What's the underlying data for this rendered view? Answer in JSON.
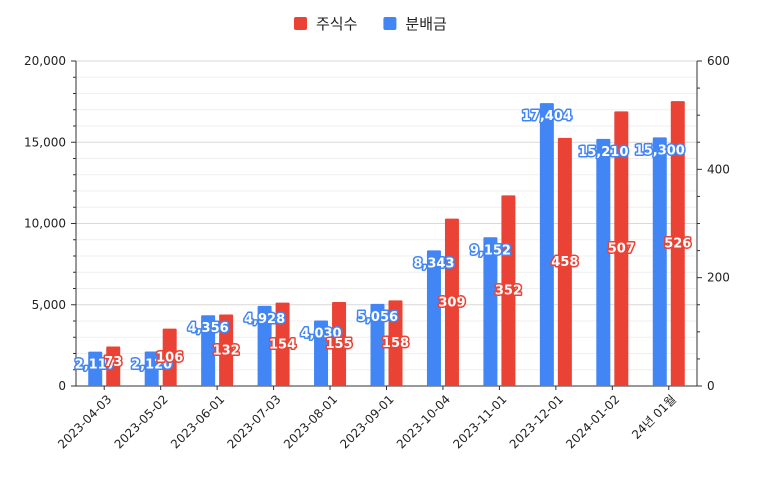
{
  "chart_data": {
    "type": "bar",
    "categories": [
      "2023-04-03",
      "2023-05-02",
      "2023-06-01",
      "2023-07-03",
      "2023-08-01",
      "2023-09-01",
      "2023-10-04",
      "2023-11-01",
      "2023-12-01",
      "2024-01-02",
      "24년 01월"
    ],
    "series": [
      {
        "name": "주식수",
        "axis": "right",
        "color": "#ea4335",
        "values": [
          73,
          106,
          132,
          154,
          155,
          158,
          309,
          352,
          458,
          507,
          526
        ],
        "labels": [
          "73",
          "106",
          "132",
          "154",
          "155",
          "158",
          "309",
          "352",
          "458",
          "507",
          "526"
        ]
      },
      {
        "name": "분배금",
        "axis": "left",
        "color": "#4285f4",
        "values": [
          2117,
          2120,
          4356,
          4928,
          4030,
          5056,
          8343,
          9152,
          17404,
          15210,
          15300
        ],
        "labels": [
          "2,117",
          "2,120",
          "4,356",
          "4,928",
          "4,030",
          "5,056",
          "8,343",
          "9,152",
          "17,404",
          "15,210",
          "15,300"
        ]
      }
    ],
    "left_axis": {
      "range": [
        0,
        20000
      ],
      "ticks": [
        "0",
        "5,000",
        "10,000",
        "15,000",
        "20,000"
      ],
      "tick_values": [
        0,
        5000,
        10000,
        15000,
        20000
      ]
    },
    "right_axis": {
      "range": [
        0,
        600
      ],
      "ticks": [
        "0",
        "200",
        "400",
        "600"
      ],
      "tick_values": [
        0,
        200,
        400,
        600
      ]
    },
    "legend": {
      "position": "top",
      "items": [
        "주식수",
        "분배금"
      ]
    },
    "grid": true
  }
}
